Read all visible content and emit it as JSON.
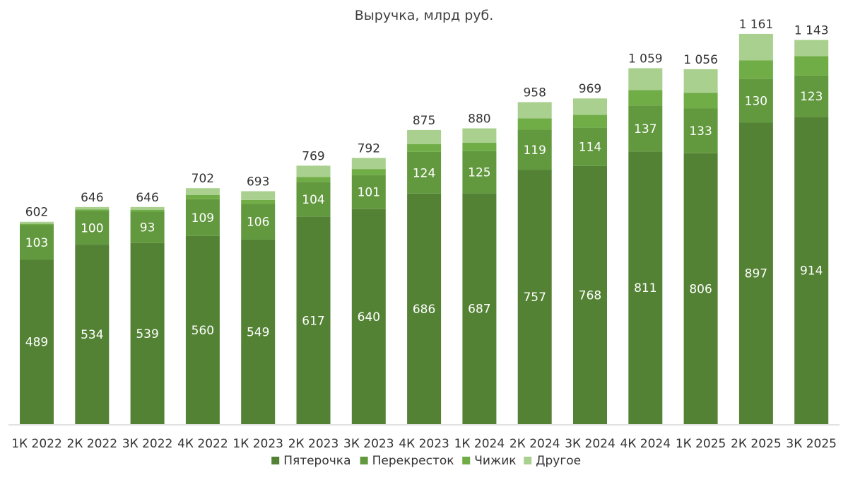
{
  "chart_data": {
    "type": "bar",
    "stacked": true,
    "title": "Выручка, млрд руб.",
    "categories": [
      "1К 2022",
      "2К 2022",
      "3К 2022",
      "4К 2022",
      "1К 2023",
      "2К 2023",
      "3К 2023",
      "4К 2023",
      "1К 2024",
      "2К 2024",
      "3К 2024",
      "4К 2024",
      "1К 2025",
      "2К 2025",
      "3К 2025"
    ],
    "totals": [
      602,
      646,
      646,
      702,
      693,
      769,
      792,
      875,
      880,
      958,
      969,
      1059,
      1056,
      1161,
      1143
    ],
    "total_labels": [
      "602",
      "646",
      "646",
      "702",
      "693",
      "769",
      "792",
      "875",
      "880",
      "958",
      "969",
      "1 059",
      "1 056",
      "1 161",
      "1 143"
    ],
    "series": [
      {
        "name": "Пятерочка",
        "color": "#548235",
        "values": [
          489,
          534,
          539,
          560,
          549,
          617,
          640,
          686,
          687,
          757,
          768,
          811,
          806,
          897,
          914
        ]
      },
      {
        "name": "Перекресток",
        "color": "#62993e",
        "values": [
          103,
          100,
          93,
          109,
          106,
          104,
          101,
          124,
          125,
          119,
          114,
          137,
          133,
          130,
          123
        ]
      },
      {
        "name": "Чижик",
        "color": "#70ad47",
        "values": [
          4,
          5,
          6,
          13,
          12,
          14,
          18,
          23,
          25,
          34,
          38,
          46,
          47,
          55,
          58
        ]
      },
      {
        "name": "Другое",
        "color": "#a9d08e",
        "values": [
          6,
          7,
          8,
          20,
          26,
          34,
          33,
          42,
          43,
          48,
          49,
          65,
          70,
          79,
          48
        ]
      }
    ],
    "segment_labels_shown_for": [
      "Пятерочка",
      "Перекресток"
    ],
    "xlabel": "",
    "ylabel": "",
    "y_axis_visible": false,
    "grid": false,
    "legend_position": "bottom"
  }
}
